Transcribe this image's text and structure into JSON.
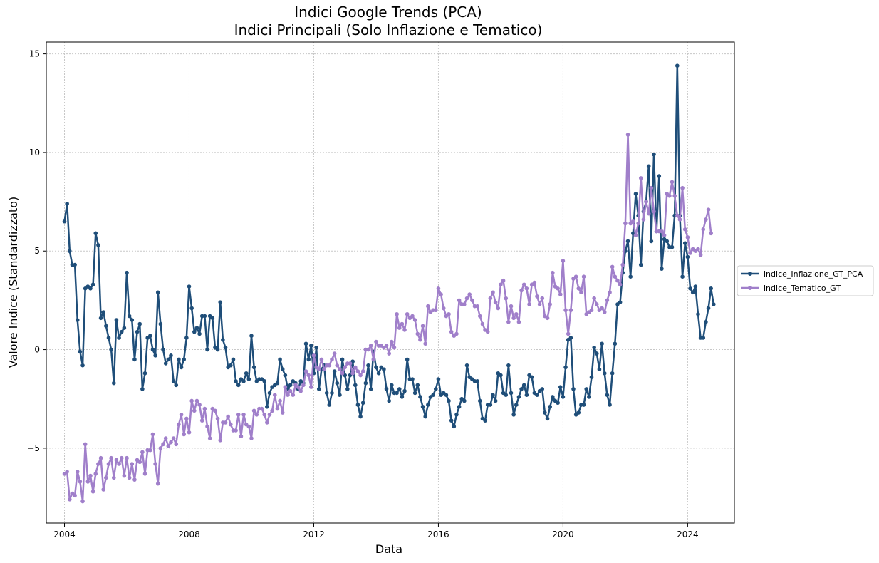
{
  "chart_data": {
    "type": "line",
    "title": "Indici Google Trends (PCA)",
    "subtitle": "Indici Principali (Solo Inflazione e Tematico)",
    "xlabel": "Data",
    "ylabel": "Valore Indice (Standardizzato)",
    "x_ticks": [
      "2004",
      "2008",
      "2012",
      "2016",
      "2020",
      "2024"
    ],
    "y_ticks": [
      -5,
      0,
      5,
      10,
      15
    ],
    "y_tick_labels": [
      "−5",
      "0",
      "5",
      "10",
      "15"
    ],
    "xlim": [
      "2003-06",
      "2025-07"
    ],
    "ylim": [
      -8.8,
      15.6
    ],
    "grid": true,
    "legend_position": "outside-right",
    "x_start": "2004-01",
    "x_frequency": "monthly",
    "series": [
      {
        "name": "indice_Inflazione_GT_PCA",
        "color": "#1f4e79",
        "values": [
          6.5,
          7.4,
          5.0,
          4.3,
          4.3,
          1.5,
          -0.1,
          -0.8,
          3.1,
          3.2,
          3.1,
          3.3,
          5.9,
          5.3,
          1.6,
          1.9,
          1.2,
          0.6,
          0.0,
          -1.7,
          1.5,
          0.6,
          0.9,
          1.1,
          3.9,
          1.7,
          1.5,
          -0.5,
          0.9,
          1.3,
          -2.0,
          -1.2,
          0.6,
          0.7,
          0.0,
          -0.3,
          2.9,
          1.3,
          0.0,
          -0.7,
          -0.5,
          -0.3,
          -1.6,
          -1.8,
          -0.5,
          -0.9,
          -0.5,
          0.6,
          3.2,
          2.1,
          0.9,
          1.1,
          0.8,
          1.7,
          1.7,
          0.0,
          1.7,
          1.6,
          0.1,
          0.0,
          2.4,
          0.5,
          0.1,
          -0.9,
          -0.8,
          -0.5,
          -1.6,
          -1.8,
          -1.5,
          -1.6,
          -1.2,
          -1.5,
          0.7,
          -0.9,
          -1.6,
          -1.5,
          -1.5,
          -1.6,
          -2.9,
          -2.2,
          -1.9,
          -1.8,
          -1.7,
          -0.5,
          -1.0,
          -1.3,
          -2.0,
          -1.8,
          -1.6,
          -1.7,
          -2.0,
          -1.6,
          -1.7,
          0.3,
          -0.5,
          0.2,
          -1.2,
          0.1,
          -2.0,
          -1.0,
          -0.8,
          -2.2,
          -2.8,
          -2.2,
          -1.1,
          -1.7,
          -2.3,
          -0.5,
          -1.3,
          -2.0,
          -1.3,
          -0.6,
          -1.8,
          -2.8,
          -3.4,
          -2.7,
          -1.7,
          -0.8,
          -2.0,
          -0.1,
          -0.9,
          -1.2,
          -0.9,
          -1.0,
          -2.0,
          -2.6,
          -1.8,
          -2.2,
          -2.2,
          -2.0,
          -2.4,
          -2.1,
          -0.5,
          -1.5,
          -1.5,
          -2.2,
          -1.8,
          -2.4,
          -2.9,
          -3.4,
          -2.8,
          -2.4,
          -2.3,
          -2.0,
          -1.5,
          -2.3,
          -2.2,
          -2.3,
          -2.6,
          -3.6,
          -3.9,
          -3.3,
          -2.9,
          -2.5,
          -2.6,
          -0.8,
          -1.4,
          -1.5,
          -1.6,
          -1.6,
          -2.6,
          -3.5,
          -3.6,
          -2.8,
          -2.8,
          -2.3,
          -2.6,
          -1.2,
          -1.3,
          -2.2,
          -2.3,
          -0.8,
          -2.2,
          -3.3,
          -2.8,
          -2.4,
          -2.0,
          -1.8,
          -2.3,
          -1.3,
          -1.4,
          -2.2,
          -2.3,
          -2.1,
          -2.0,
          -3.2,
          -3.5,
          -2.9,
          -2.4,
          -2.6,
          -2.7,
          -1.9,
          -2.4,
          -0.9,
          0.5,
          0.6,
          -2.0,
          -3.3,
          -3.2,
          -2.8,
          -2.8,
          -2.0,
          -2.4,
          -1.4,
          0.1,
          -0.2,
          -1.0,
          0.3,
          -1.2,
          -2.3,
          -2.8,
          -1.2,
          0.3,
          2.3,
          2.4,
          3.9,
          5.0,
          5.5,
          3.7,
          5.9,
          7.9,
          6.8,
          4.3,
          7.0,
          7.5,
          9.3,
          5.5,
          9.9,
          6.0,
          8.8,
          4.1,
          5.6,
          5.5,
          5.2,
          5.2,
          6.8,
          14.4,
          6.8,
          3.7,
          5.4,
          4.7,
          3.1,
          2.9,
          3.2,
          1.8,
          0.6,
          0.6,
          1.4,
          2.1,
          3.1,
          2.3
        ]
      },
      {
        "name": "indice_Tematico_GT",
        "color": "#a07fca",
        "values": [
          -6.3,
          -6.2,
          -7.6,
          -7.3,
          -7.4,
          -6.2,
          -6.7,
          -7.7,
          -4.8,
          -6.7,
          -6.4,
          -7.2,
          -6.3,
          -5.8,
          -5.5,
          -7.1,
          -6.5,
          -5.8,
          -5.5,
          -6.5,
          -5.6,
          -5.8,
          -5.5,
          -6.4,
          -5.5,
          -6.5,
          -5.8,
          -6.6,
          -5.6,
          -5.7,
          -5.2,
          -6.3,
          -5.1,
          -5.1,
          -4.3,
          -5.8,
          -6.8,
          -5.0,
          -4.8,
          -4.5,
          -4.9,
          -4.7,
          -4.5,
          -4.8,
          -3.8,
          -3.3,
          -4.3,
          -3.5,
          -4.2,
          -2.6,
          -3.1,
          -2.6,
          -2.8,
          -3.6,
          -3.0,
          -3.9,
          -4.5,
          -3.0,
          -3.1,
          -3.5,
          -4.6,
          -3.7,
          -3.7,
          -3.4,
          -3.8,
          -4.1,
          -4.1,
          -3.3,
          -4.4,
          -3.3,
          -3.8,
          -3.9,
          -4.5,
          -3.1,
          -3.3,
          -3.0,
          -3.0,
          -3.3,
          -3.7,
          -3.3,
          -3.1,
          -2.3,
          -3.0,
          -2.6,
          -3.2,
          -1.9,
          -2.3,
          -2.1,
          -2.3,
          -1.8,
          -1.9,
          -2.1,
          -1.8,
          -1.1,
          -1.3,
          -1.9,
          -0.3,
          -0.9,
          -1.0,
          -0.5,
          -1.0,
          -0.8,
          -0.8,
          -0.5,
          -0.2,
          -0.8,
          -1.0,
          -1.2,
          -0.9,
          -0.7,
          -0.7,
          -1.2,
          -0.9,
          -1.1,
          -1.3,
          -1.1,
          0.0,
          0.0,
          0.2,
          -0.5,
          0.4,
          0.2,
          0.2,
          0.1,
          0.2,
          -0.2,
          0.4,
          0.1,
          1.8,
          1.1,
          1.3,
          1.0,
          1.8,
          1.6,
          1.7,
          1.5,
          0.8,
          0.5,
          1.2,
          0.3,
          2.2,
          1.9,
          2.0,
          2.0,
          3.1,
          2.8,
          2.1,
          1.7,
          1.8,
          0.9,
          0.7,
          0.8,
          2.5,
          2.3,
          2.3,
          2.6,
          2.8,
          2.5,
          2.2,
          2.2,
          1.7,
          1.3,
          1.0,
          0.9,
          2.6,
          2.9,
          2.4,
          2.1,
          3.3,
          3.5,
          2.6,
          1.4,
          2.2,
          1.6,
          1.8,
          1.4,
          3.0,
          3.3,
          3.1,
          2.3,
          3.3,
          3.4,
          2.7,
          2.3,
          2.6,
          1.7,
          1.6,
          2.3,
          3.9,
          3.2,
          3.1,
          2.8,
          4.5,
          2.0,
          0.8,
          2.0,
          3.6,
          3.7,
          3.1,
          2.9,
          3.7,
          1.8,
          1.9,
          2.0,
          2.6,
          2.3,
          2.0,
          2.1,
          1.9,
          2.5,
          2.9,
          4.2,
          3.7,
          3.5,
          3.3,
          4.3,
          6.4,
          10.9,
          6.4,
          6.5,
          5.8,
          6.4,
          8.7,
          6.6,
          7.5,
          6.9,
          8.2,
          7.0,
          6.0,
          6.0,
          6.0,
          5.8,
          7.9,
          7.8,
          8.5,
          7.8,
          6.8,
          6.6,
          8.2,
          6.1,
          5.7,
          4.9,
          5.1,
          5.0,
          5.1,
          4.8,
          6.1,
          6.6,
          7.1,
          5.9
        ]
      }
    ]
  }
}
